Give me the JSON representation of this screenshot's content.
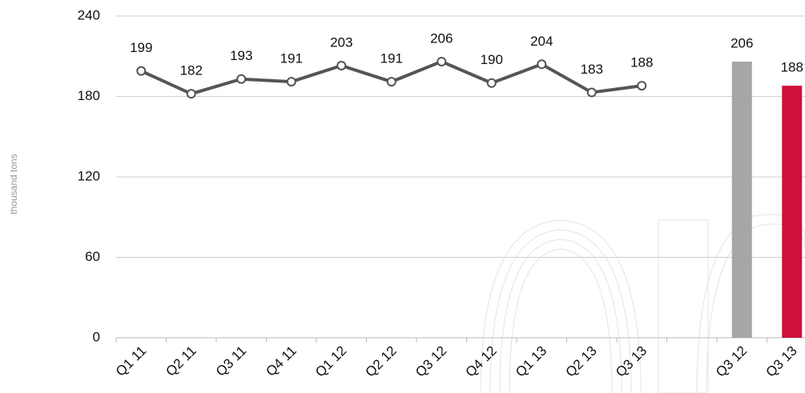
{
  "chart_data": [
    {
      "type": "line",
      "ylabel": "thousand tons",
      "categories": [
        "Q1 11",
        "Q2 11",
        "Q3 11",
        "Q4 11",
        "Q1 12",
        "Q2 12",
        "Q3 12",
        "Q4 12",
        "Q1 13",
        "Q2 13",
        "Q3 13"
      ],
      "values": [
        199,
        182,
        193,
        191,
        203,
        191,
        206,
        190,
        204,
        183,
        188
      ],
      "color": "#555555",
      "ylim": [
        0,
        240
      ],
      "yticks": [
        0,
        60,
        120,
        180,
        240
      ],
      "grid": true
    },
    {
      "type": "bar",
      "categories": [
        "Q3 12",
        "Q3 13"
      ],
      "values": [
        206,
        188
      ],
      "colors": [
        "#a6a6a6",
        "#d0103a"
      ]
    }
  ]
}
